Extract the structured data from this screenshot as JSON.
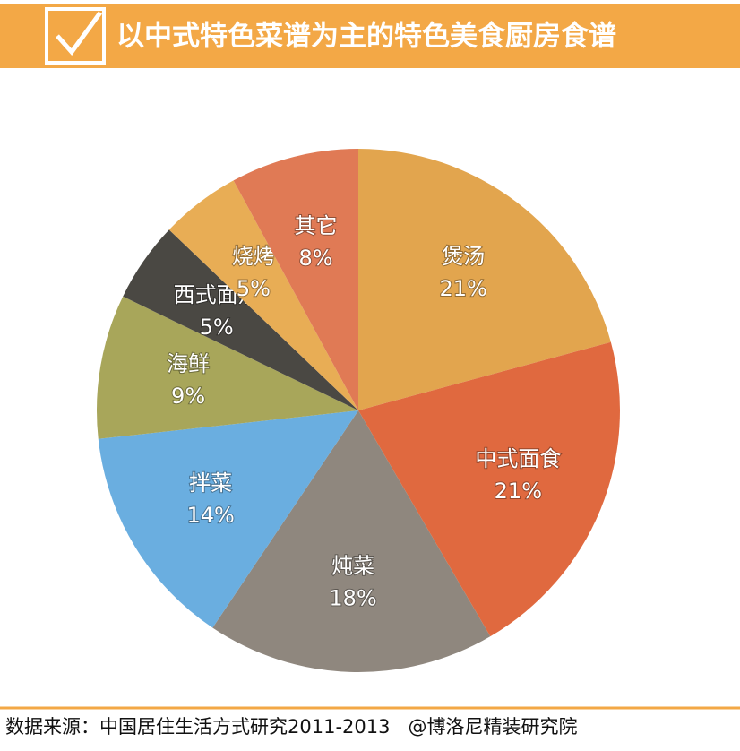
{
  "chart_data": {
    "type": "pie",
    "title": "以中式特色菜谱为主的特色美食厨房食谱",
    "categories": [
      "煲汤",
      "中式面食",
      "炖菜",
      "拌菜",
      "海鲜",
      "西式面点",
      "烧烤",
      "其它"
    ],
    "values": [
      21,
      21,
      18,
      14,
      9,
      5,
      5,
      8
    ],
    "value_labels": [
      "21%",
      "21%",
      "18%",
      "14%",
      "9%",
      "5%",
      "5%",
      "8%"
    ],
    "colors": [
      "#e2a54e",
      "#e0693f",
      "#8f877e",
      "#6aaee0",
      "#a8a65a",
      "#4a4843",
      "#e8ad55",
      "#e07a55"
    ],
    "source": "数据来源：中国居住生活方式研究2011-2013   @博洛尼精装研究院"
  }
}
